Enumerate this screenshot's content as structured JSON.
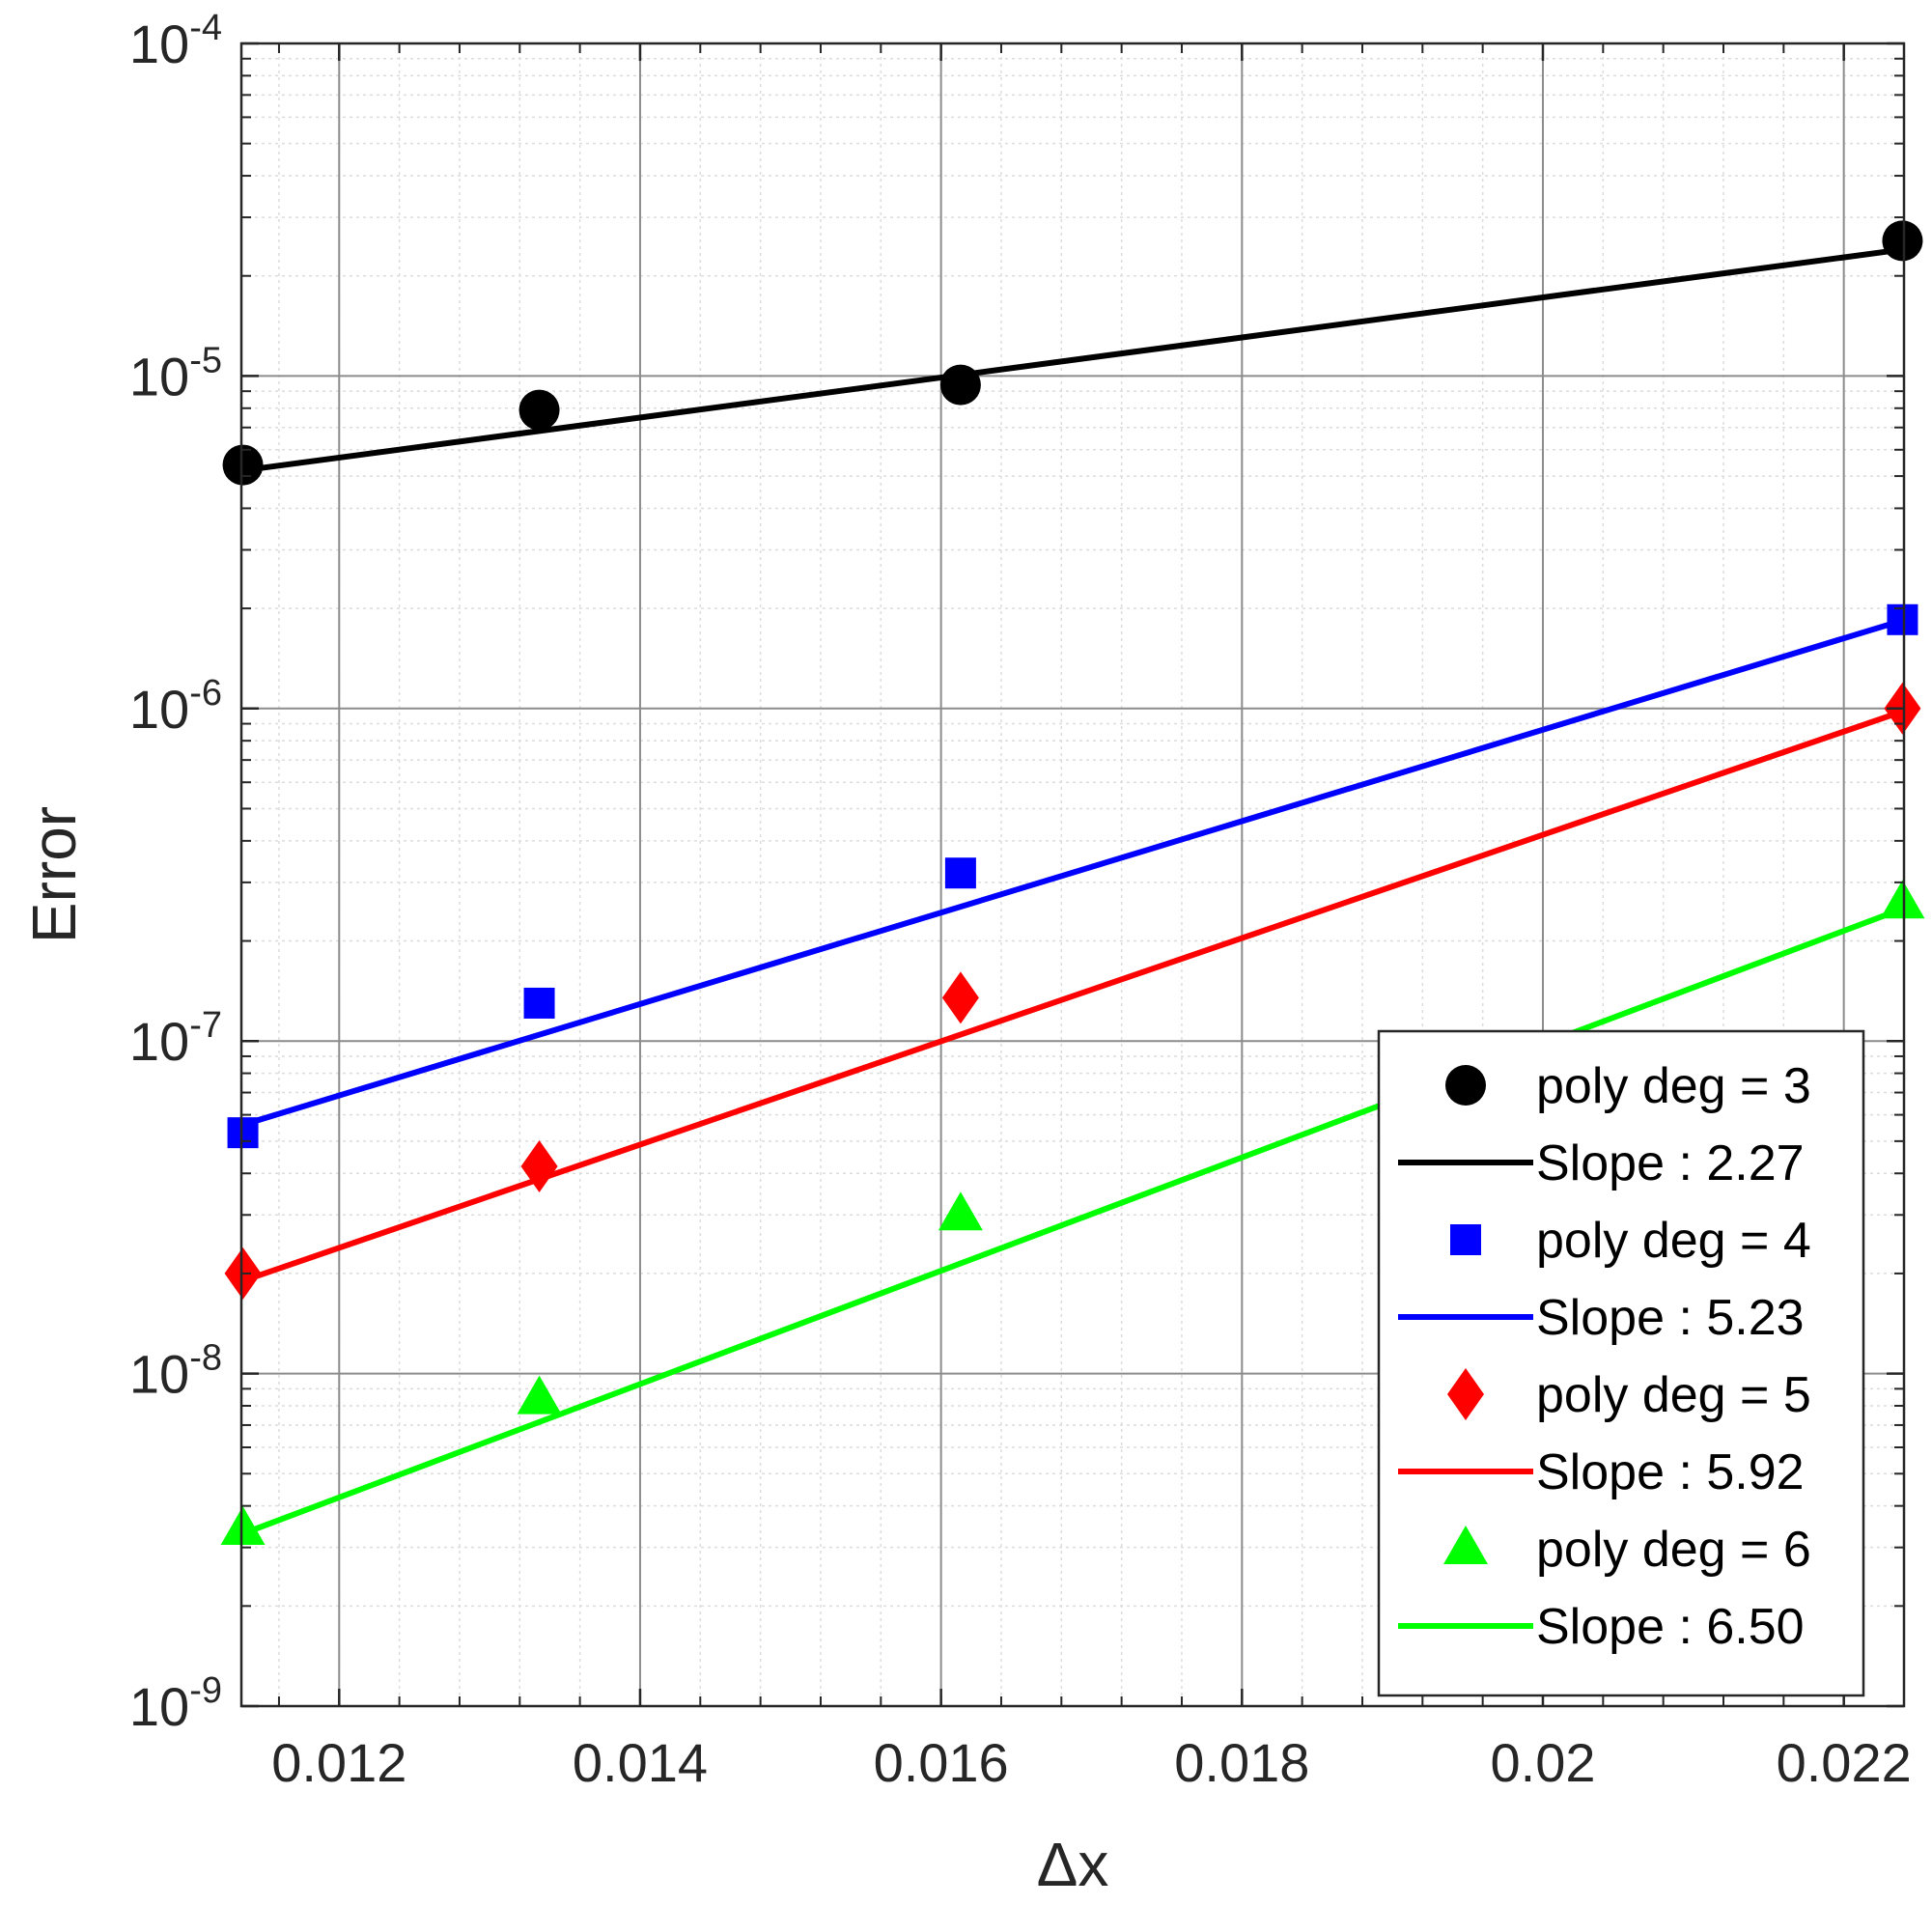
{
  "chart_data": {
    "type": "line",
    "xlabel": "Δx",
    "ylabel": "Error",
    "xscale": "linear",
    "yscale": "log",
    "xlim": [
      0.01135,
      0.0224
    ],
    "ylim": [
      1e-09,
      0.0001
    ],
    "grid": true,
    "minor_grid": true,
    "legend_position": "bottom-right",
    "x_ticks": [
      {
        "value": 0.012,
        "label": "0.012"
      },
      {
        "value": 0.014,
        "label": "0.014"
      },
      {
        "value": 0.016,
        "label": "0.016"
      },
      {
        "value": 0.018,
        "label": "0.018"
      },
      {
        "value": 0.02,
        "label": "0.02"
      },
      {
        "value": 0.022,
        "label": "0.022"
      }
    ],
    "y_ticks": [
      {
        "value": 0.0001,
        "base": "10",
        "exp": "-4"
      },
      {
        "value": 1e-05,
        "base": "10",
        "exp": "-5"
      },
      {
        "value": 1e-06,
        "base": "10",
        "exp": "-6"
      },
      {
        "value": 1e-07,
        "base": "10",
        "exp": "-7"
      },
      {
        "value": 1e-08,
        "base": "10",
        "exp": "-8"
      },
      {
        "value": 1e-09,
        "base": "10",
        "exp": "-9"
      }
    ],
    "series": [
      {
        "name": "poly deg = 3",
        "fit_name": "Slope : 2.27",
        "color": "#000000",
        "marker": "circle",
        "x": [
          0.01136,
          0.01333,
          0.01613,
          0.02239
        ],
        "y": [
          5.4e-06,
          7.9e-06,
          9.4e-06,
          2.55e-05
        ],
        "fit_x": [
          0.01136,
          0.02239
        ],
        "fit_y": [
          5.2e-06,
          2.4e-05
        ]
      },
      {
        "name": "poly deg = 4",
        "fit_name": "Slope : 5.23",
        "color": "#0000ff",
        "marker": "square",
        "x": [
          0.01136,
          0.01333,
          0.01613,
          0.02239
        ],
        "y": [
          5.3e-08,
          1.3e-07,
          3.2e-07,
          1.85e-06
        ],
        "fit_x": [
          0.01136,
          0.02239
        ],
        "fit_y": [
          5.6e-08,
          1.84e-06
        ]
      },
      {
        "name": "poly deg = 5",
        "fit_name": "Slope : 5.92",
        "color": "#ff0000",
        "marker": "diamond",
        "x": [
          0.01136,
          0.01333,
          0.01613,
          0.02239
        ],
        "y": [
          2e-08,
          4.2e-08,
          1.35e-07,
          1e-06
        ],
        "fit_x": [
          0.01136,
          0.02239
        ],
        "fit_y": [
          1.9e-08,
          9.8e-07
        ]
      },
      {
        "name": "poly deg = 6",
        "fit_name": "Slope : 6.50",
        "color": "#00ff00",
        "marker": "triangle",
        "x": [
          0.01136,
          0.01333,
          0.01613,
          0.02239
        ],
        "y": [
          3.4e-09,
          8.4e-09,
          3e-08,
          2.6e-07
        ],
        "fit_x": [
          0.01136,
          0.02239
        ],
        "fit_y": [
          3.3e-09,
          2.5e-07
        ]
      }
    ]
  }
}
